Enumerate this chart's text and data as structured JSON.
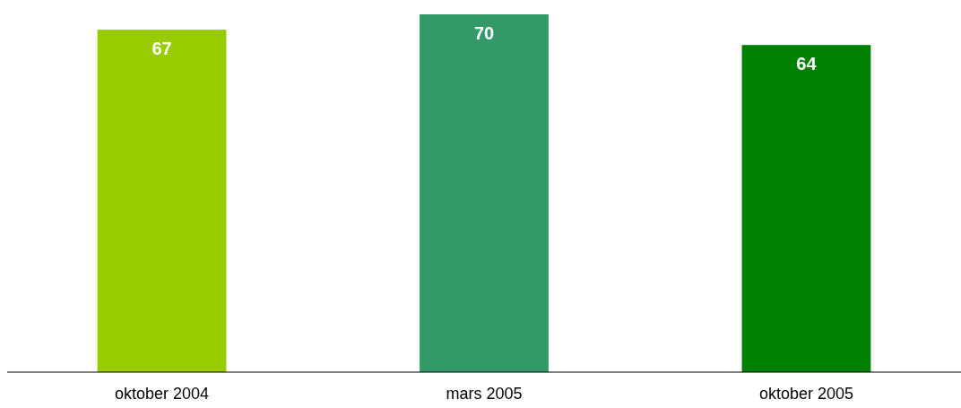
{
  "chart_data": {
    "type": "bar",
    "categories": [
      "oktober 2004",
      "mars 2005",
      "oktober 2005"
    ],
    "values": [
      67,
      70,
      64
    ],
    "colors": [
      "#99cc00",
      "#339966",
      "#008000"
    ],
    "data_labels": true
  }
}
